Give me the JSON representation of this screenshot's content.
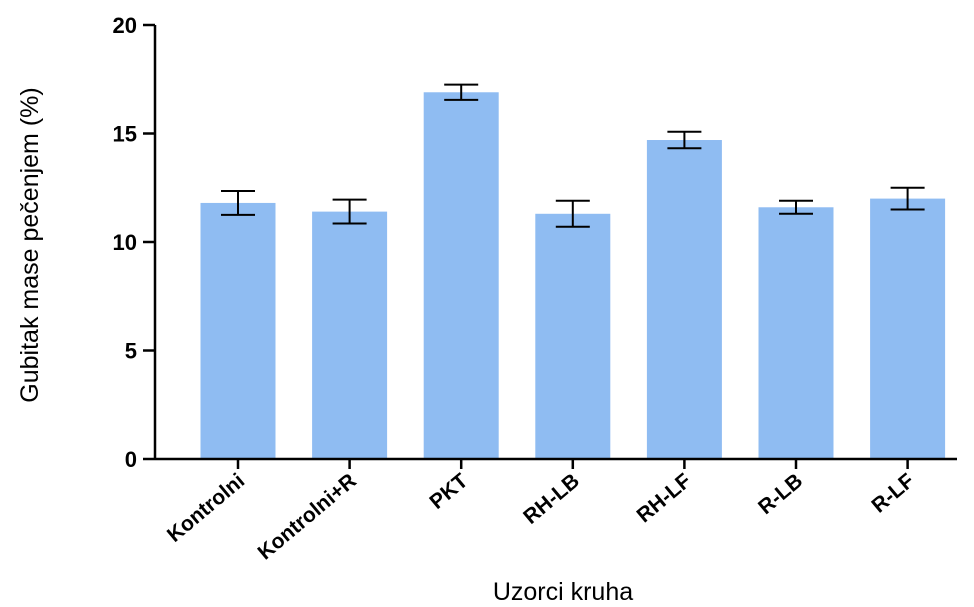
{
  "chart_data": {
    "type": "bar",
    "title": "",
    "xlabel": "Uzorci kruha",
    "ylabel": "Gubitak mase pečenjem (%)",
    "ylim": [
      0,
      20
    ],
    "yticks": [
      0,
      5,
      10,
      15,
      20
    ],
    "grid": false,
    "categories": [
      "Kontrolni",
      "Kontrolni+R",
      "PKT",
      "RH-LB",
      "RH-LF",
      "R-LB",
      "R-LF"
    ],
    "values": [
      11.8,
      11.4,
      16.9,
      11.3,
      14.7,
      11.6,
      12.0
    ],
    "errors": [
      0.55,
      0.55,
      0.35,
      0.6,
      0.38,
      0.3,
      0.5
    ],
    "bar_color": "#8fbcf2"
  }
}
